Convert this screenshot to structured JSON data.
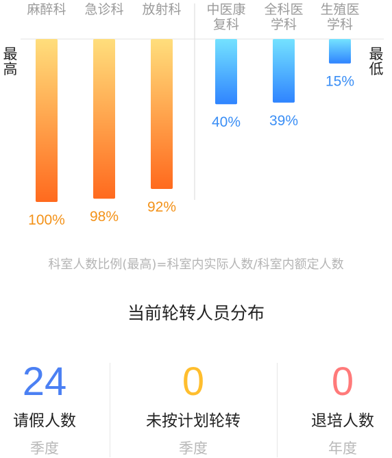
{
  "chart_data": {
    "type": "bar",
    "categories": [
      "麻醉科",
      "急诊科",
      "放射科",
      "中医康复科",
      "全科医学科",
      "生殖医学科"
    ],
    "values": [
      100,
      98,
      92,
      40,
      39,
      15
    ],
    "value_labels": [
      "100%",
      "98%",
      "92%",
      "40%",
      "39%",
      "15%"
    ],
    "high_label": "最高",
    "low_label": "最低",
    "groups": [
      "highest",
      "highest",
      "highest",
      "lowest",
      "lowest",
      "lowest"
    ],
    "ylim": [
      0,
      100
    ],
    "colors": {
      "highest_top": "#ffde7c",
      "highest_bottom": "#ff6a1e",
      "highest_label": "#f39219",
      "lowest_top": "#74e2ff",
      "lowest_bottom": "#2f84ff",
      "lowest_label": "#3a8ef5"
    }
  },
  "formula": "科室人数比例(最高)=科室内实际人数/科室内额定人数",
  "section_title": "当前轮转人员分布",
  "stats": [
    {
      "value": "24",
      "label": "请假人数",
      "period": "季度",
      "color": "#4b80f3"
    },
    {
      "value": "0",
      "label": "未按计划轮转",
      "period": "季度",
      "color": "#ffbe2e"
    },
    {
      "value": "0",
      "label": "退培人数",
      "period": "年度",
      "color": "#ff7a7a"
    }
  ]
}
